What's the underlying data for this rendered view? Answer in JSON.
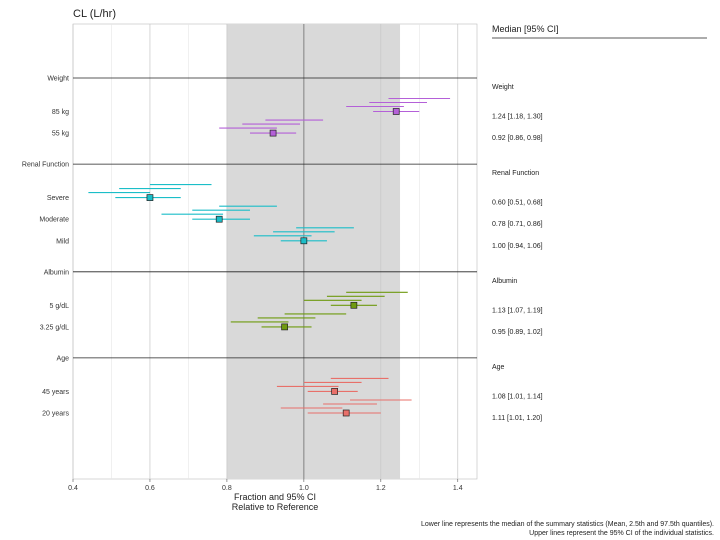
{
  "chart_data": {
    "type": "forest",
    "title": "CL (L/hr)",
    "xlabel_line1": "Fraction and 95% CI",
    "xlabel_line2": "Relative to Reference",
    "xlim": [
      0.4,
      1.45
    ],
    "x_ticks": [
      0.4,
      0.6,
      0.8,
      1.0,
      1.2,
      1.4
    ],
    "x_tick_labels": [
      "0.4",
      "0.6",
      "0.8",
      "1.0",
      "1.2",
      "1.4"
    ],
    "reference_band": [
      0.8,
      1.25
    ],
    "reference_line": 1.0,
    "table_header": "Median [95% CI]",
    "footnote_line1": "Lower line represents the median of the summary statistics (Mean, 2.5th and 97.5th quantiles).",
    "footnote_line2": "Upper lines represent the 95% CI of the individual statistics.",
    "groups": [
      {
        "name": "Weight",
        "color": "#b460d8",
        "levels": [
          {
            "label": "85 kg",
            "median": 1.24,
            "lower": 1.18,
            "upper": 1.3,
            "ci_text": "1.24 [1.18, 1.30]",
            "upper_lines": [
              [
                1.22,
                1.38
              ],
              [
                1.17,
                1.32
              ],
              [
                1.11,
                1.26
              ]
            ]
          },
          {
            "label": "55 kg",
            "median": 0.92,
            "lower": 0.86,
            "upper": 0.98,
            "ci_text": "0.92 [0.86, 0.98]",
            "upper_lines": [
              [
                0.9,
                1.05
              ],
              [
                0.84,
                0.99
              ],
              [
                0.78,
                0.93
              ]
            ]
          }
        ]
      },
      {
        "name": "Renal Function",
        "color": "#1bbec8",
        "levels": [
          {
            "label": "Severe",
            "median": 0.6,
            "lower": 0.51,
            "upper": 0.68,
            "ci_text": "0.60 [0.51, 0.68]",
            "upper_lines": [
              [
                0.6,
                0.76
              ],
              [
                0.52,
                0.68
              ],
              [
                0.44,
                0.6
              ]
            ]
          },
          {
            "label": "Moderate",
            "median": 0.78,
            "lower": 0.71,
            "upper": 0.86,
            "ci_text": "0.78 [0.71, 0.86]",
            "upper_lines": [
              [
                0.78,
                0.93
              ],
              [
                0.71,
                0.86
              ],
              [
                0.63,
                0.79
              ]
            ]
          },
          {
            "label": "Mild",
            "median": 1.0,
            "lower": 0.94,
            "upper": 1.06,
            "ci_text": "1.00 [0.94, 1.06]",
            "upper_lines": [
              [
                0.98,
                1.13
              ],
              [
                0.92,
                1.08
              ],
              [
                0.87,
                1.02
              ]
            ]
          }
        ]
      },
      {
        "name": "Albumin",
        "color": "#6f9a10",
        "levels": [
          {
            "label": "5 g/dL",
            "median": 1.13,
            "lower": 1.07,
            "upper": 1.19,
            "ci_text": "1.13 [1.07, 1.19]",
            "upper_lines": [
              [
                1.11,
                1.27
              ],
              [
                1.06,
                1.21
              ],
              [
                1.0,
                1.15
              ]
            ]
          },
          {
            "label": "3.25 g/dL",
            "median": 0.95,
            "lower": 0.89,
            "upper": 1.02,
            "ci_text": "0.95 [0.89, 1.02]",
            "upper_lines": [
              [
                0.95,
                1.11
              ],
              [
                0.88,
                1.03
              ],
              [
                0.81,
                0.96
              ]
            ]
          }
        ]
      },
      {
        "name": "Age",
        "color": "#e8706a",
        "levels": [
          {
            "label": "45 years",
            "median": 1.08,
            "lower": 1.01,
            "upper": 1.14,
            "ci_text": "1.08 [1.01, 1.14]",
            "upper_lines": [
              [
                1.07,
                1.22
              ],
              [
                1.0,
                1.15
              ],
              [
                0.93,
                1.09
              ]
            ]
          },
          {
            "label": "20 years",
            "median": 1.11,
            "lower": 1.01,
            "upper": 1.2,
            "ci_text": "1.11 [1.01, 1.20]",
            "upper_lines": [
              [
                1.12,
                1.28
              ],
              [
                1.05,
                1.19
              ],
              [
                0.94,
                1.1
              ]
            ]
          }
        ]
      }
    ]
  }
}
